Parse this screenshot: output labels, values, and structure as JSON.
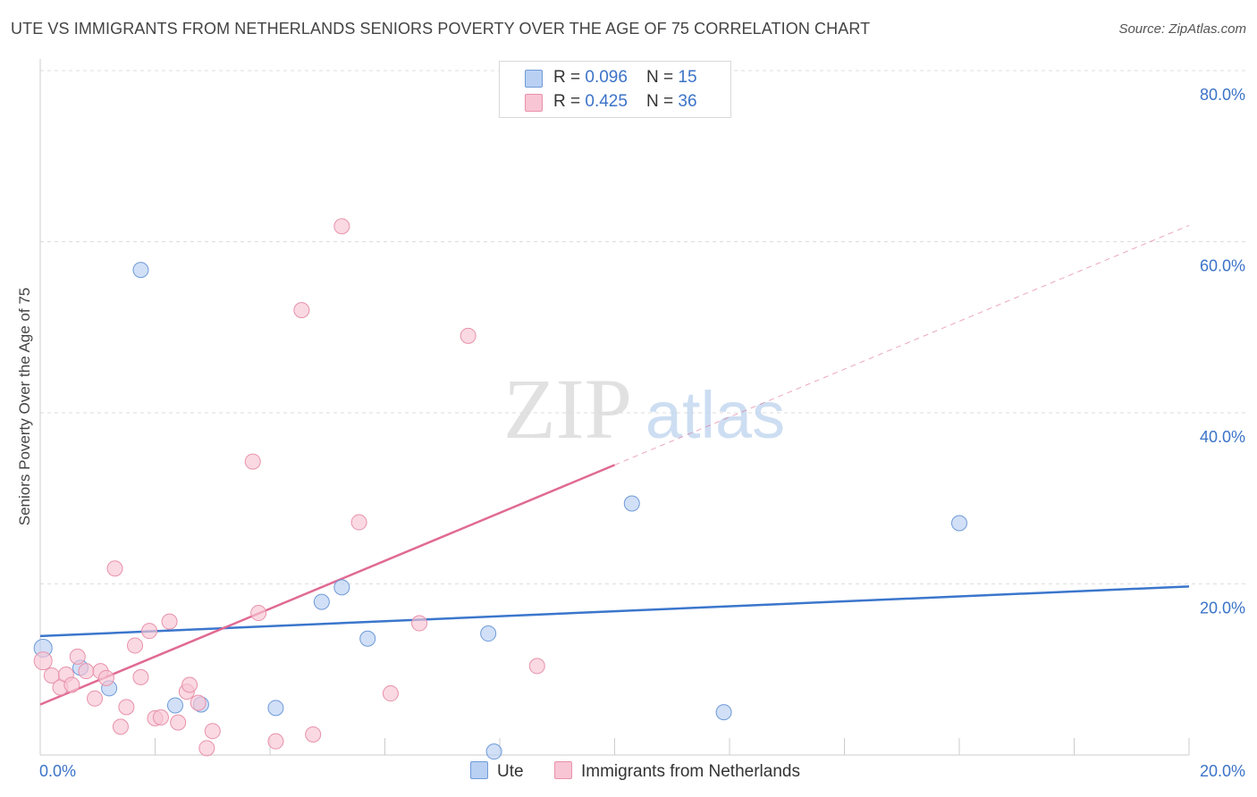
{
  "header": {
    "title": "UTE VS IMMIGRANTS FROM NETHERLANDS SENIORS POVERTY OVER THE AGE OF 75 CORRELATION CHART",
    "source": "Source: ZipAtlas.com"
  },
  "legend": {
    "ute": {
      "r_label": "R = ",
      "r_value": "0.096",
      "n_label": "N = ",
      "n_value": "15"
    },
    "neth": {
      "r_label": "R = ",
      "r_value": "0.425",
      "n_label": "N = ",
      "n_value": "36"
    }
  },
  "bottom_legend": {
    "ute": "Ute",
    "neth": "Immigrants from Netherlands"
  },
  "watermark": {
    "zip": "ZIP",
    "atlas": "atlas"
  },
  "colors": {
    "ute_fill": "#b9d0f3",
    "ute_stroke": "#6f9ad9",
    "ute_line": "#3b76cc",
    "neth_fill": "#f8c5d4",
    "neth_stroke": "#e891aa",
    "neth_line": "#e06a93",
    "tick_label": "#3b73c8",
    "grid": "#dddddd",
    "axis": "#cccccc"
  },
  "chart_data": {
    "type": "scatter",
    "title": "UTE VS IMMIGRANTS FROM NETHERLANDS SENIORS POVERTY OVER THE AGE OF 75 CORRELATION CHART",
    "xlabel": "",
    "ylabel": "Seniors Poverty Over the Age of 75",
    "xlim": [
      0,
      20
    ],
    "ylim": [
      0,
      80
    ],
    "x_tick_labels": [
      "0.0%",
      "20.0%"
    ],
    "y_ticks": [
      20,
      40,
      60,
      80
    ],
    "y_tick_labels": [
      "20.0%",
      "40.0%",
      "60.0%",
      "80.0%"
    ],
    "grid": true,
    "series": [
      {
        "name": "Ute",
        "r": 0.096,
        "n": 15,
        "points": [
          [
            0.05,
            12.5
          ],
          [
            0.7,
            10.2
          ],
          [
            1.2,
            7.8
          ],
          [
            1.75,
            56.7
          ],
          [
            2.35,
            5.8
          ],
          [
            2.8,
            5.9
          ],
          [
            4.1,
            5.5
          ],
          [
            4.9,
            17.9
          ],
          [
            5.25,
            19.6
          ],
          [
            5.7,
            13.6
          ],
          [
            7.8,
            14.2
          ],
          [
            7.9,
            0.4
          ],
          [
            10.3,
            29.4
          ],
          [
            11.9,
            5.0
          ],
          [
            16.0,
            27.1
          ]
        ],
        "trend": {
          "x": [
            0,
            20
          ],
          "y": [
            13.9,
            19.7
          ]
        }
      },
      {
        "name": "Immigrants from Netherlands",
        "r": 0.425,
        "n": 36,
        "points": [
          [
            0.05,
            11.0
          ],
          [
            0.2,
            9.3
          ],
          [
            0.35,
            7.9
          ],
          [
            0.45,
            9.4
          ],
          [
            0.55,
            8.2
          ],
          [
            0.65,
            11.5
          ],
          [
            0.8,
            9.8
          ],
          [
            0.95,
            6.6
          ],
          [
            1.05,
            9.8
          ],
          [
            1.15,
            9.0
          ],
          [
            1.3,
            21.8
          ],
          [
            1.4,
            3.3
          ],
          [
            1.5,
            5.6
          ],
          [
            1.65,
            12.8
          ],
          [
            1.75,
            9.1
          ],
          [
            1.9,
            14.5
          ],
          [
            2.0,
            4.3
          ],
          [
            2.1,
            4.4
          ],
          [
            2.25,
            15.6
          ],
          [
            2.4,
            3.8
          ],
          [
            2.55,
            7.4
          ],
          [
            2.6,
            8.2
          ],
          [
            2.75,
            6.1
          ],
          [
            2.9,
            0.8
          ],
          [
            3.0,
            2.8
          ],
          [
            3.7,
            34.3
          ],
          [
            3.8,
            16.6
          ],
          [
            4.1,
            1.6
          ],
          [
            4.55,
            52.0
          ],
          [
            4.75,
            2.4
          ],
          [
            5.25,
            61.8
          ],
          [
            5.55,
            27.2
          ],
          [
            6.1,
            7.2
          ],
          [
            6.6,
            15.4
          ],
          [
            7.45,
            49.0
          ],
          [
            8.65,
            10.4
          ]
        ],
        "trend": {
          "x": [
            0,
            10
          ],
          "y": [
            5.9,
            33.9
          ]
        },
        "trend_extension": {
          "x": [
            10,
            20
          ],
          "y": [
            33.9,
            61.9
          ]
        }
      }
    ]
  }
}
